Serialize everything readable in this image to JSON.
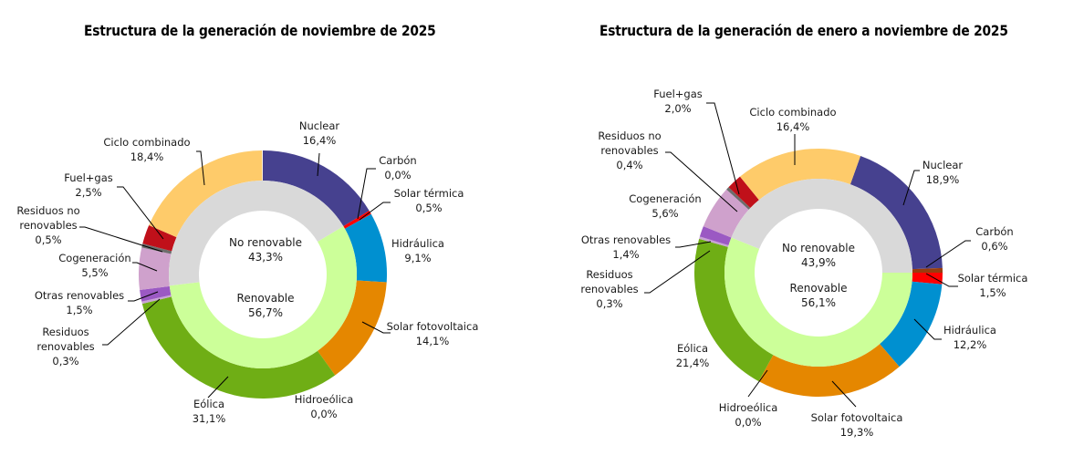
{
  "chart_data": [
    {
      "type": "pie",
      "subtype": "double-donut",
      "title": "Estructura de la generación de noviembre de 2025",
      "outer_series": [
        {
          "name": "Nuclear",
          "value": 16.4,
          "label": "16,4%",
          "color": "#46418f"
        },
        {
          "name": "Carbón",
          "value": 0.0,
          "label": "0,0%",
          "color": "#983d0e"
        },
        {
          "name": "Solar térmica",
          "value": 0.5,
          "label": "0,5%",
          "color": "#ff0000"
        },
        {
          "name": "Hidráulica",
          "value": 9.1,
          "label": "9,1%",
          "color": "#0090d0"
        },
        {
          "name": "Solar fotovoltaica",
          "value": 14.1,
          "label": "14,1%",
          "color": "#e58700"
        },
        {
          "name": "Hidroeólica",
          "value": 0.0,
          "label": "0,0%",
          "color": "#5b8a23"
        },
        {
          "name": "Eólica",
          "value": 31.1,
          "label": "31,1%",
          "color": "#6fae15"
        },
        {
          "name": "Residuos renovables",
          "value": 0.3,
          "label": "0,3%",
          "color": "#c9a2d5"
        },
        {
          "name": "Otras renovables",
          "value": 1.5,
          "label": "1,5%",
          "color": "#9b59c3"
        },
        {
          "name": "Cogeneración",
          "value": 5.5,
          "label": "5,5%",
          "color": "#cfa1cc"
        },
        {
          "name": "Residuos no renovables",
          "value": 0.5,
          "label": "0,5%",
          "color": "#6d6d6d"
        },
        {
          "name": "Fuel+gas",
          "value": 2.5,
          "label": "2,5%",
          "color": "#c0101a"
        },
        {
          "name": "Ciclo combinado",
          "value": 18.4,
          "label": "18,4%",
          "color": "#fecb6a"
        }
      ],
      "inner_series": [
        {
          "name": "Renovable",
          "value": 56.7,
          "label": "56,7%",
          "color": "#ccff99"
        },
        {
          "name": "No renovable",
          "value": 43.3,
          "label": "43,3%",
          "color": "#d9d9d9"
        }
      ],
      "start": "Nuclear at 12 o'clock, clockwise"
    },
    {
      "type": "pie",
      "subtype": "double-donut",
      "title": "Estructura de la generación de enero a noviembre de 2025",
      "outer_series": [
        {
          "name": "Nuclear",
          "value": 18.9,
          "label": "18,9%",
          "color": "#46418f"
        },
        {
          "name": "Carbón",
          "value": 0.6,
          "label": "0,6%",
          "color": "#983d0e"
        },
        {
          "name": "Solar térmica",
          "value": 1.5,
          "label": "1,5%",
          "color": "#ff0000"
        },
        {
          "name": "Hidráulica",
          "value": 12.2,
          "label": "12,2%",
          "color": "#0090d0"
        },
        {
          "name": "Solar fotovoltaica",
          "value": 19.3,
          "label": "19,3%",
          "color": "#e58700"
        },
        {
          "name": "Hidroeólica",
          "value": 0.0,
          "label": "0,0%",
          "color": "#5b8a23"
        },
        {
          "name": "Eólica",
          "value": 21.4,
          "label": "21,4%",
          "color": "#6fae15"
        },
        {
          "name": "Residuos renovables",
          "value": 0.3,
          "label": "0,3%",
          "color": "#c9a2d5"
        },
        {
          "name": "Otras renovables",
          "value": 1.4,
          "label": "1,4%",
          "color": "#9b59c3"
        },
        {
          "name": "Cogeneración",
          "value": 5.6,
          "label": "5,6%",
          "color": "#cfa1cc"
        },
        {
          "name": "Residuos no renovables",
          "value": 0.4,
          "label": "0,4%",
          "color": "#6d6d6d"
        },
        {
          "name": "Fuel+gas",
          "value": 2.0,
          "label": "2,0%",
          "color": "#c0101a"
        },
        {
          "name": "Ciclo combinado",
          "value": 16.4,
          "label": "16,4%",
          "color": "#fecb6a"
        }
      ],
      "inner_series": [
        {
          "name": "Renovable",
          "value": 56.1,
          "label": "56,1%",
          "color": "#ccff99"
        },
        {
          "name": "No renovable",
          "value": 43.9,
          "label": "43,9%",
          "color": "#d9d9d9"
        }
      ],
      "start": "Renovable inner ring at 3 o'clock, clockwise"
    }
  ]
}
